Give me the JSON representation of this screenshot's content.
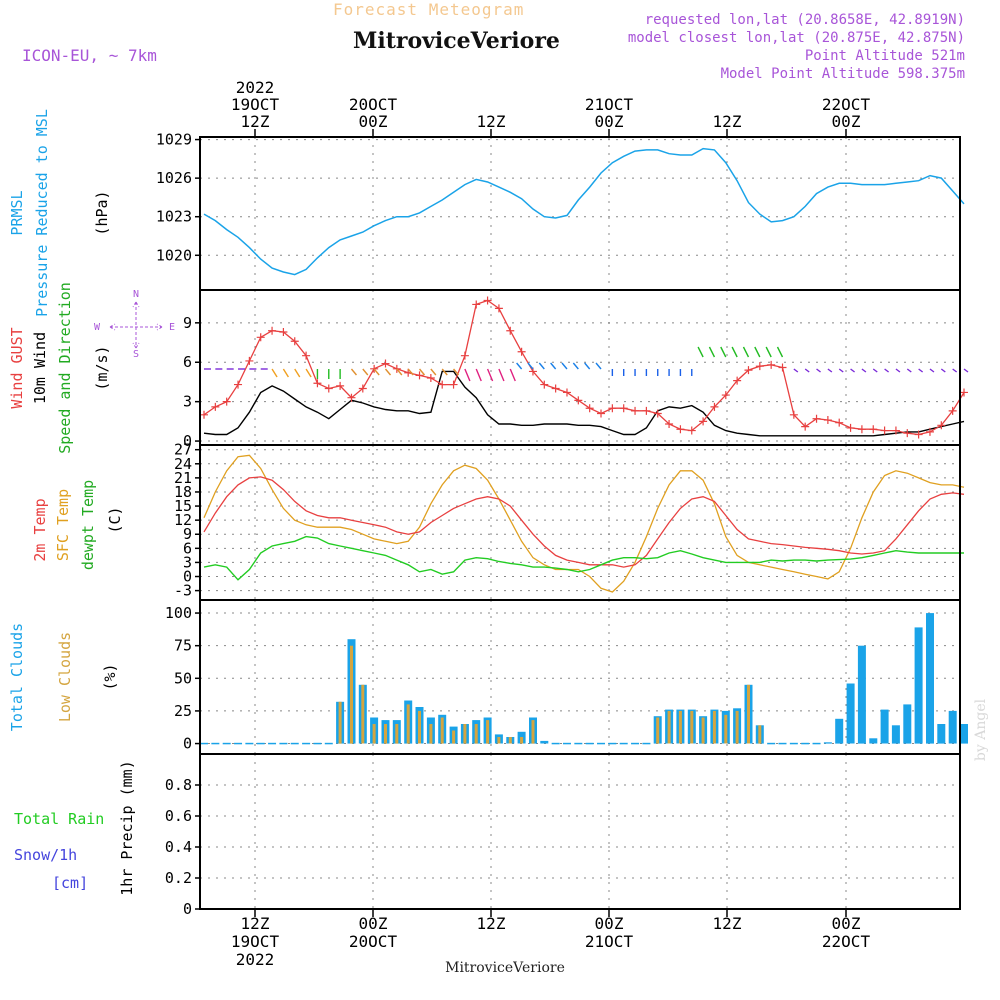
{
  "header": {
    "top_title": "Forecast Meteogram",
    "location": "MitroviceVeriore",
    "model": "ICON-EU, ~ 7km",
    "requested": "requested lon,lat (20.8658E, 42.8919N)",
    "closest": "model closest lon,lat (20.875E, 42.875N)",
    "point_alt": "Point Altitude 521m",
    "model_alt": "Model Point Altitude 598.375m",
    "footer_location": "MitroviceVeriore",
    "watermark": "by Angel"
  },
  "colors": {
    "pressure": "#1aa3e8",
    "gust": "#e84040",
    "wind": "#000000",
    "direction": "#22bb22",
    "temp2m": "#e84040",
    "sfc": "#e0a020",
    "dewpt": "#22cc22",
    "total_clouds": "#1aa3e8",
    "low_clouds": "#d4a540",
    "rain": "#22cc22",
    "snow": "#4444dd",
    "purple": "#a855d8",
    "title_orange": "#f4c890"
  },
  "time_axis": {
    "top_labels": [
      {
        "l1": "2022",
        "l2": "19OCT",
        "l3": "12Z"
      },
      {
        "l1": "",
        "l2": "20OCT",
        "l3": "00Z"
      },
      {
        "l1": "",
        "l2": "",
        "l3": "12Z"
      },
      {
        "l1": "",
        "l2": "21OCT",
        "l3": "00Z"
      },
      {
        "l1": "",
        "l2": "",
        "l3": "12Z"
      },
      {
        "l1": "",
        "l2": "22OCT",
        "l3": "00Z"
      }
    ],
    "bottom_labels": [
      {
        "l1": "12Z",
        "l2": "19OCT",
        "l3": "2022"
      },
      {
        "l1": "00Z",
        "l2": "20OCT",
        "l3": ""
      },
      {
        "l1": "12Z",
        "l2": "",
        "l3": ""
      },
      {
        "l1": "00Z",
        "l2": "21OCT",
        "l3": ""
      },
      {
        "l1": "12Z",
        "l2": "",
        "l3": ""
      },
      {
        "l1": "00Z",
        "l2": "22OCT",
        "l3": ""
      }
    ]
  },
  "panels": {
    "pressure": {
      "label1": "PRMSL",
      "label2": "Pressure Reduced to MSL",
      "unit": "(hPa)"
    },
    "wind": {
      "gust": "Wind GUST",
      "wind": "10m Wind",
      "dir": "Speed and Direction",
      "unit": "(m/s)",
      "compass": {
        "n": "N",
        "s": "S",
        "w": "W",
        "e": "E"
      }
    },
    "temp": {
      "t2m": "2m Temp",
      "sfc": "SFC Temp",
      "dew": "dewpt Temp",
      "unit": "(C)"
    },
    "clouds": {
      "total": "Total Clouds",
      "low": "Low Clouds",
      "unit": "(%)"
    },
    "precip": {
      "rain": "Total  Rain",
      "snow": "Snow/1h",
      "cm": "[cm]",
      "unit": "1hr Precip (mm)"
    }
  },
  "chart_data": [
    {
      "type": "line",
      "name": "PRMSL",
      "ylabel": "(hPa)",
      "ylim": [
        1017.3,
        1029.2
      ],
      "yticks": [
        1020,
        1023,
        1026,
        1029
      ],
      "x": [
        7,
        10,
        13,
        16,
        19,
        22,
        25,
        28,
        31,
        34,
        37,
        40,
        43,
        46,
        49,
        52,
        55,
        58,
        61,
        64,
        67,
        70,
        73,
        76,
        79,
        82,
        85,
        88,
        91,
        94,
        97,
        100,
        103,
        106,
        109,
        112,
        115,
        118,
        121,
        124,
        127,
        130,
        133,
        136,
        139,
        142,
        145,
        148,
        151,
        154,
        157,
        160,
        163,
        166,
        169,
        172,
        175,
        178,
        181,
        184,
        187,
        190,
        193,
        196,
        199,
        202,
        205,
        208
      ],
      "series": [
        {
          "values": [
            1023.2,
            1022.7,
            1022.0,
            1021.4,
            1020.6,
            1019.7,
            1019.0,
            1018.7,
            1018.5,
            1018.9,
            1019.8,
            1020.6,
            1021.2,
            1021.5,
            1021.8,
            1022.3,
            1022.7,
            1023.0,
            1023.0,
            1023.3,
            1023.8,
            1024.3,
            1024.9,
            1025.5,
            1025.9,
            1025.7,
            1025.3,
            1024.9,
            1024.4,
            1023.6,
            1023.0,
            1022.9,
            1023.1,
            1024.3,
            1025.3,
            1026.4,
            1027.2,
            1027.7,
            1028.1,
            1028.2,
            1028.2,
            1027.9,
            1027.8,
            1027.8,
            1028.3,
            1028.2,
            1027.2,
            1025.8,
            1024.1,
            1023.2,
            1022.6,
            1022.7,
            1023.0,
            1023.8,
            1024.8,
            1025.3,
            1025.6,
            1025.6,
            1025.5,
            1025.5,
            1025.5,
            1025.6,
            1025.7,
            1025.8,
            1026.2,
            1026.0,
            1025.0,
            1024.0
          ]
        }
      ]
    },
    {
      "type": "line",
      "name": "Wind",
      "ylabel": "(m/s)",
      "ylim": [
        -0.3,
        11.5
      ],
      "yticks": [
        0,
        3,
        6,
        9
      ],
      "x": [
        7,
        10,
        13,
        16,
        19,
        22,
        25,
        28,
        31,
        34,
        37,
        40,
        43,
        46,
        49,
        52,
        55,
        58,
        61,
        64,
        67,
        70,
        73,
        76,
        79,
        82,
        85,
        88,
        91,
        94,
        97,
        100,
        103,
        106,
        109,
        112,
        115,
        118,
        121,
        124,
        127,
        130,
        133,
        136,
        139,
        142,
        145,
        148,
        151,
        154,
        157,
        160,
        163,
        166,
        169,
        172,
        175,
        178,
        181,
        184,
        187,
        190,
        193,
        196,
        199,
        202,
        205,
        208
      ],
      "series": [
        {
          "name": "Wind GUST",
          "values": [
            2.0,
            2.6,
            3.0,
            4.3,
            6.1,
            7.9,
            8.4,
            8.3,
            7.6,
            6.5,
            4.4,
            4.0,
            4.2,
            3.3,
            4.0,
            5.5,
            5.9,
            5.5,
            5.2,
            5.0,
            4.8,
            4.3,
            4.3,
            6.5,
            10.4,
            10.7,
            10.1,
            8.4,
            6.8,
            5.3,
            4.3,
            4.0,
            3.7,
            3.1,
            2.5,
            2.1,
            2.5,
            2.5,
            2.3,
            2.3,
            2.1,
            1.3,
            0.9,
            0.8,
            1.5,
            2.6,
            3.5,
            4.6,
            5.4,
            5.7,
            5.8,
            5.6,
            2.0,
            1.1,
            1.7,
            1.6,
            1.4,
            1.0,
            0.9,
            0.9,
            0.8,
            0.8,
            0.6,
            0.5,
            0.7,
            1.2,
            2.3,
            3.7
          ]
        },
        {
          "name": "10m Wind",
          "values": [
            0.6,
            0.5,
            0.5,
            1.0,
            2.2,
            3.7,
            4.2,
            3.8,
            3.2,
            2.6,
            2.2,
            1.7,
            2.4,
            3.1,
            2.9,
            2.6,
            2.4,
            2.3,
            2.3,
            2.1,
            2.2,
            5.3,
            5.3,
            4.1,
            3.3,
            2.0,
            1.3,
            1.3,
            1.2,
            1.2,
            1.3,
            1.3,
            1.3,
            1.2,
            1.2,
            1.1,
            0.8,
            0.5,
            0.5,
            1.0,
            2.3,
            2.6,
            2.5,
            2.7,
            2.2,
            1.2,
            0.8,
            0.6,
            0.5,
            0.4,
            0.4,
            0.4,
            0.4,
            0.4,
            0.4,
            0.4,
            0.4,
            0.4,
            0.4,
            0.4,
            0.5,
            0.6,
            0.7,
            0.7,
            0.9,
            1.1,
            1.3,
            1.5
          ]
        }
      ]
    },
    {
      "type": "line",
      "name": "Temperature",
      "ylabel": "(C)",
      "ylim": [
        -5,
        28
      ],
      "yticks": [
        -3,
        0,
        3,
        6,
        9,
        12,
        15,
        18,
        21,
        24,
        27
      ],
      "x": [
        7,
        10,
        13,
        16,
        19,
        22,
        25,
        28,
        31,
        34,
        37,
        40,
        43,
        46,
        49,
        52,
        55,
        58,
        61,
        64,
        67,
        70,
        73,
        76,
        79,
        82,
        85,
        88,
        91,
        94,
        97,
        100,
        103,
        106,
        109,
        112,
        115,
        118,
        121,
        124,
        127,
        130,
        133,
        136,
        139,
        142,
        145,
        148,
        151,
        154,
        157,
        160,
        163,
        166,
        169,
        172,
        175,
        178,
        181,
        184,
        187,
        190,
        193,
        196,
        199,
        202,
        205,
        208
      ],
      "series": [
        {
          "name": "2m Temp",
          "values": [
            9.5,
            13.5,
            17.0,
            19.5,
            21.0,
            21.2,
            20.5,
            18.5,
            16.0,
            14.0,
            13.0,
            12.5,
            12.5,
            12.0,
            11.5,
            11.0,
            10.5,
            9.5,
            9.0,
            9.5,
            11.5,
            13.0,
            14.5,
            15.5,
            16.5,
            17.0,
            16.5,
            15.0,
            12.0,
            9.0,
            6.5,
            4.5,
            3.5,
            3.0,
            2.5,
            2.5,
            2.5,
            2.0,
            2.5,
            4.5,
            8.0,
            11.5,
            14.5,
            16.5,
            17.0,
            16.0,
            13.0,
            10.0,
            8.0,
            7.5,
            7.0,
            6.8,
            6.5,
            6.2,
            6.0,
            5.8,
            5.5,
            5.0,
            4.8,
            5.0,
            5.5,
            8.0,
            11.0,
            14.0,
            16.5,
            17.5,
            17.8,
            17.5
          ]
        },
        {
          "name": "SFC Temp",
          "values": [
            12.5,
            18.0,
            22.5,
            25.5,
            25.8,
            23.0,
            18.5,
            14.5,
            12.0,
            11.0,
            10.5,
            10.5,
            10.5,
            10.0,
            9.0,
            8.0,
            7.5,
            7.0,
            7.5,
            10.5,
            15.5,
            19.5,
            22.5,
            23.7,
            23.0,
            20.5,
            16.5,
            12.0,
            7.5,
            4.0,
            2.5,
            1.5,
            1.5,
            1.5,
            0.0,
            -2.5,
            -3.3,
            -1.0,
            3.0,
            8.5,
            14.5,
            19.5,
            22.5,
            22.5,
            20.5,
            15.5,
            8.5,
            4.5,
            3.0,
            2.5,
            2.0,
            1.5,
            1.0,
            0.5,
            0.0,
            -0.5,
            1.0,
            6.0,
            12.5,
            18.0,
            21.5,
            22.5,
            22.0,
            21.0,
            20.0,
            19.5,
            19.5,
            19.0
          ]
        },
        {
          "name": "dewpt Temp",
          "values": [
            2.0,
            2.5,
            2.0,
            -0.7,
            1.5,
            5.0,
            6.5,
            7.0,
            7.5,
            8.5,
            8.2,
            7.0,
            6.5,
            6.0,
            5.5,
            5.0,
            4.5,
            3.5,
            2.5,
            1.0,
            1.5,
            0.5,
            1.0,
            3.5,
            4.0,
            3.8,
            3.2,
            2.8,
            2.5,
            2.0,
            2.0,
            1.8,
            1.5,
            1.0,
            1.5,
            2.5,
            3.5,
            4.0,
            4.0,
            3.8,
            4.0,
            5.0,
            5.5,
            4.8,
            4.0,
            3.5,
            3.0,
            3.0,
            3.0,
            3.0,
            3.5,
            3.3,
            3.5,
            3.5,
            3.3,
            3.5,
            3.6,
            3.7,
            4.0,
            4.5,
            5.0,
            5.5,
            5.2,
            5.0,
            5.0,
            5.0,
            5.0,
            5.0
          ]
        }
      ]
    },
    {
      "type": "bar",
      "name": "Clouds",
      "ylabel": "(%)",
      "ylim": [
        -8,
        110
      ],
      "yticks": [
        0,
        25,
        50,
        75,
        100
      ],
      "series": [
        {
          "name": "Total Clouds",
          "x": [
            7,
            10,
            13,
            16,
            19,
            22,
            25,
            28,
            31,
            34,
            37,
            40,
            43,
            46,
            49,
            52,
            55,
            58,
            61,
            64,
            67,
            70,
            73,
            76,
            79,
            82,
            85,
            88,
            91,
            94,
            97,
            100,
            103,
            106,
            109,
            112,
            115,
            118,
            121,
            124,
            127,
            130,
            133,
            136,
            139,
            142,
            145,
            148,
            151,
            154,
            157,
            160,
            163,
            166,
            169,
            172,
            175,
            178,
            181,
            184,
            187,
            190,
            193,
            196,
            199,
            202,
            205,
            208
          ],
          "values": [
            0,
            0,
            0,
            0,
            0,
            0,
            0,
            0,
            0,
            0,
            0,
            0,
            32,
            80,
            45,
            20,
            18,
            18,
            33,
            28,
            20,
            22,
            13,
            15,
            18,
            20,
            7,
            5,
            9,
            20,
            2,
            0,
            0,
            0,
            0,
            0,
            0,
            0,
            0,
            0,
            21,
            26,
            26,
            26,
            21,
            26,
            25,
            27,
            45,
            14,
            0,
            0,
            0,
            0,
            0,
            1,
            19,
            46,
            75,
            4,
            26,
            14,
            30,
            89,
            100,
            15,
            25,
            15
          ]
        },
        {
          "name": "Low Clouds",
          "values": [
            0,
            0,
            0,
            0,
            0,
            0,
            0,
            0,
            0,
            0,
            0,
            0,
            32,
            75,
            45,
            15,
            15,
            15,
            30,
            25,
            15,
            20,
            10,
            15,
            15,
            18,
            5,
            5,
            5,
            18,
            0,
            0,
            0,
            0,
            0,
            0,
            0,
            0,
            0,
            0,
            20,
            25,
            25,
            25,
            20,
            25,
            22,
            25,
            45,
            14,
            0,
            0,
            0,
            0,
            0,
            0,
            0,
            0,
            0,
            0,
            0,
            0,
            0,
            0,
            0,
            0,
            0,
            0
          ]
        }
      ]
    },
    {
      "type": "bar",
      "name": "Precip",
      "ylabel": "1hr Precip (mm)",
      "ylim": [
        0,
        1.0
      ],
      "yticks": [
        0,
        0.2,
        0.4,
        0.6,
        0.8
      ],
      "series": [
        {
          "name": "Total Rain",
          "values": []
        }
      ]
    }
  ]
}
